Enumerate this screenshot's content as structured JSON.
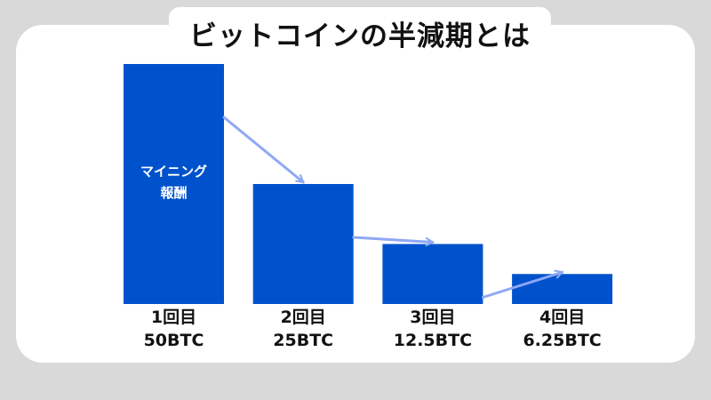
{
  "colors": {
    "bar": "#0052cc",
    "arrow": "#8fa8f5",
    "card": "#ffffff",
    "background": "#d9d9d9"
  },
  "chart_data": {
    "type": "bar",
    "title": "ビットコインの半減期とは",
    "categories": [
      "1回目",
      "2回目",
      "3回目",
      "4回目"
    ],
    "data_labels": [
      "50BTC",
      "25BTC",
      "12.5BTC",
      "6.25BTC"
    ],
    "values": [
      50,
      25,
      12.5,
      6.25
    ],
    "bar_annotation": [
      "マイニング",
      "報酬"
    ],
    "ylim": [
      0,
      50
    ],
    "grid": false,
    "legend": "none"
  }
}
